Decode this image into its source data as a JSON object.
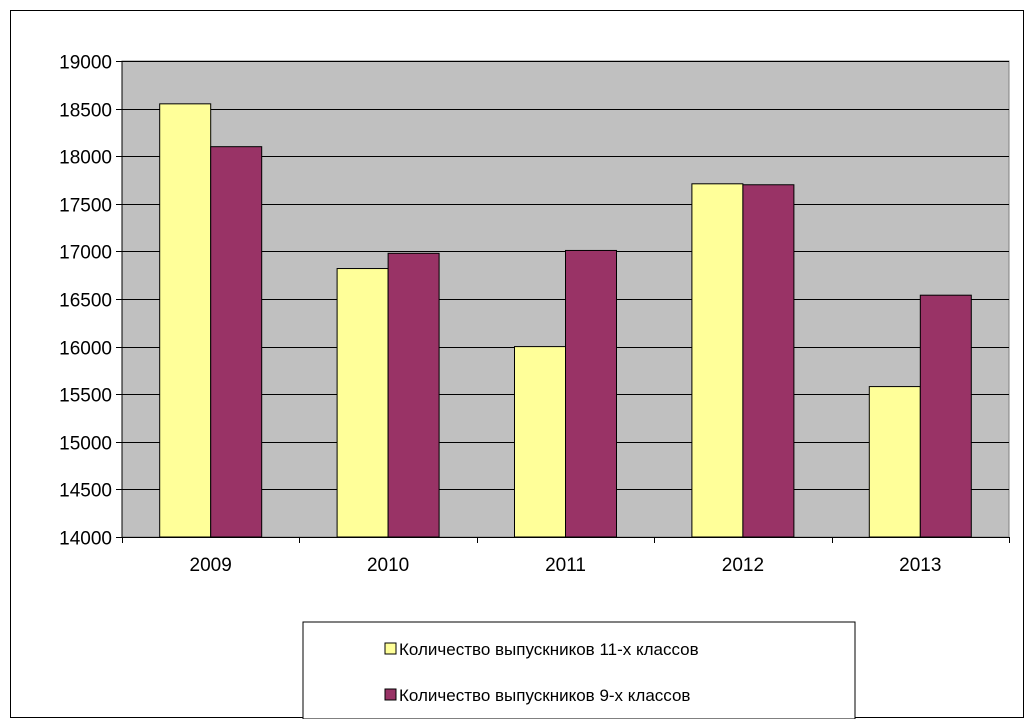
{
  "chart_data": {
    "type": "bar",
    "title": "",
    "xlabel": "",
    "ylabel": "",
    "categories": [
      "2009",
      "2010",
      "2011",
      "2012",
      "2013"
    ],
    "series": [
      {
        "name": "Количество выпускников 11-х классов",
        "values": [
          18550,
          16820,
          16000,
          17710,
          15580
        ],
        "color": "#ffff99"
      },
      {
        "name": "Количество выпускников 9-х классов",
        "values": [
          18100,
          16980,
          17010,
          17700,
          16540
        ],
        "color": "#993366"
      }
    ],
    "ylim": [
      14000,
      19000
    ],
    "yticks": [
      "14000",
      "14500",
      "15000",
      "15500",
      "16000",
      "16500",
      "17000",
      "17500",
      "18000",
      "18500",
      "19000"
    ],
    "grid": true,
    "plot_background": "#c0c0c0",
    "legend_position": "bottom"
  }
}
